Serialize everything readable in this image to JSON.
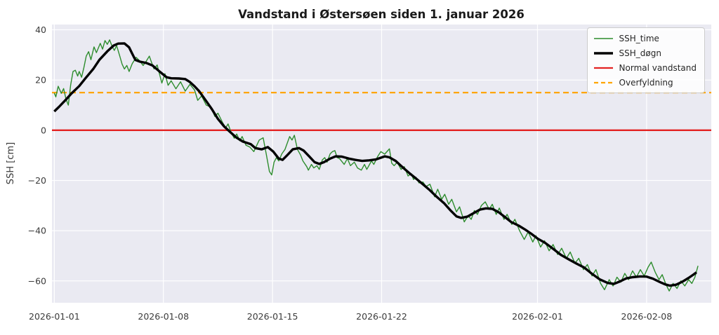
{
  "chart_data": {
    "type": "line",
    "title": "Vandstand i Østersøen siden 1. januar 2026",
    "ylabel": "SSH [cm]",
    "xlabel": "",
    "x_unit": "days since 2026-01-01",
    "xlim": [
      -0.15,
      42.15
    ],
    "ylim": [
      -68.7,
      42.1
    ],
    "grid": true,
    "legend_position": "upper right",
    "background_color": "#eaeaf2",
    "grid_color": "#ffffff",
    "x_ticks": [
      {
        "value": 0,
        "label": "2026-01-01"
      },
      {
        "value": 7,
        "label": "2026-01-08"
      },
      {
        "value": 14,
        "label": "2026-01-15"
      },
      {
        "value": 21,
        "label": "2026-01-22"
      },
      {
        "value": 31,
        "label": "2026-02-01"
      },
      {
        "value": 38,
        "label": "2026-02-08"
      }
    ],
    "y_ticks": [
      {
        "value": 40,
        "label": "40"
      },
      {
        "value": 20,
        "label": "20"
      },
      {
        "value": 0,
        "label": "0"
      },
      {
        "value": -20,
        "label": "−20"
      },
      {
        "value": -40,
        "label": "−40"
      },
      {
        "value": -60,
        "label": "−60"
      }
    ],
    "series": [
      {
        "id": "ssh-time",
        "name": "SSH_time",
        "color": "#2d8c2d",
        "width": 1.4,
        "points": [
          [
            0,
            14.8
          ],
          [
            0.1,
            13.3
          ],
          [
            0.25,
            17.5
          ],
          [
            0.45,
            14.7
          ],
          [
            0.6,
            16.6
          ],
          [
            0.75,
            12.4
          ],
          [
            0.9,
            10.0
          ],
          [
            1.05,
            18.0
          ],
          [
            1.2,
            23.4
          ],
          [
            1.35,
            23.9
          ],
          [
            1.5,
            21.6
          ],
          [
            1.6,
            23.4
          ],
          [
            1.75,
            21.1
          ],
          [
            1.9,
            25.0
          ],
          [
            2.05,
            29.5
          ],
          [
            2.2,
            31.3
          ],
          [
            2.35,
            28.1
          ],
          [
            2.55,
            33.2
          ],
          [
            2.7,
            30.9
          ],
          [
            2.95,
            34.6
          ],
          [
            3.1,
            32.3
          ],
          [
            3.25,
            35.7
          ],
          [
            3.4,
            34.2
          ],
          [
            3.55,
            36.0
          ],
          [
            3.7,
            33.5
          ],
          [
            3.85,
            31.8
          ],
          [
            4.0,
            33.7
          ],
          [
            4.2,
            29.5
          ],
          [
            4.35,
            26.3
          ],
          [
            4.5,
            24.4
          ],
          [
            4.65,
            25.8
          ],
          [
            4.8,
            23.4
          ],
          [
            5.0,
            26.5
          ],
          [
            5.25,
            29.0
          ],
          [
            5.45,
            27.8
          ],
          [
            5.7,
            25.8
          ],
          [
            5.9,
            27.5
          ],
          [
            6.1,
            29.5
          ],
          [
            6.25,
            26.8
          ],
          [
            6.4,
            24.4
          ],
          [
            6.6,
            26.0
          ],
          [
            6.9,
            18.8
          ],
          [
            7.1,
            22.5
          ],
          [
            7.3,
            17.9
          ],
          [
            7.5,
            19.7
          ],
          [
            7.8,
            16.5
          ],
          [
            8.1,
            19.3
          ],
          [
            8.4,
            15.6
          ],
          [
            8.7,
            18.3
          ],
          [
            9.0,
            16.0
          ],
          [
            9.2,
            11.9
          ],
          [
            9.45,
            13.7
          ],
          [
            9.75,
            10.0
          ],
          [
            10.05,
            9.2
          ],
          [
            10.3,
            5.5
          ],
          [
            10.5,
            6.8
          ],
          [
            10.8,
            3.0
          ],
          [
            11.0,
            1.0
          ],
          [
            11.15,
            2.5
          ],
          [
            11.35,
            -1.0
          ],
          [
            11.55,
            -3.2
          ],
          [
            11.7,
            -1.5
          ],
          [
            11.9,
            -4.2
          ],
          [
            12.05,
            -2.5
          ],
          [
            12.3,
            -6.0
          ],
          [
            12.55,
            -6.7
          ],
          [
            12.8,
            -8.5
          ],
          [
            13.15,
            -3.9
          ],
          [
            13.4,
            -3.0
          ],
          [
            13.6,
            -9.5
          ],
          [
            13.8,
            -16.4
          ],
          [
            13.95,
            -17.8
          ],
          [
            14.1,
            -12.7
          ],
          [
            14.25,
            -10.9
          ],
          [
            14.4,
            -12.2
          ],
          [
            14.6,
            -9.4
          ],
          [
            14.8,
            -7.6
          ],
          [
            15.1,
            -2.5
          ],
          [
            15.25,
            -3.9
          ],
          [
            15.4,
            -2.0
          ],
          [
            15.6,
            -7.6
          ],
          [
            15.8,
            -9.9
          ],
          [
            15.95,
            -12.2
          ],
          [
            16.2,
            -14.5
          ],
          [
            16.3,
            -15.9
          ],
          [
            16.5,
            -13.6
          ],
          [
            16.65,
            -15.0
          ],
          [
            16.85,
            -14.1
          ],
          [
            17.0,
            -15.6
          ],
          [
            17.2,
            -11.8
          ],
          [
            17.35,
            -10.9
          ],
          [
            17.5,
            -12.7
          ],
          [
            17.7,
            -9.4
          ],
          [
            17.85,
            -8.5
          ],
          [
            18.0,
            -8.1
          ],
          [
            18.15,
            -10.9
          ],
          [
            18.3,
            -11.3
          ],
          [
            18.6,
            -13.6
          ],
          [
            18.8,
            -11.3
          ],
          [
            19.0,
            -14.1
          ],
          [
            19.25,
            -12.7
          ],
          [
            19.45,
            -15.0
          ],
          [
            19.7,
            -15.9
          ],
          [
            19.9,
            -13.6
          ],
          [
            20.05,
            -15.6
          ],
          [
            20.35,
            -12.2
          ],
          [
            20.5,
            -13.6
          ],
          [
            20.75,
            -10.4
          ],
          [
            20.95,
            -8.5
          ],
          [
            21.2,
            -9.5
          ],
          [
            21.5,
            -7.4
          ],
          [
            21.65,
            -13.1
          ],
          [
            21.8,
            -14.1
          ],
          [
            22.0,
            -12.7
          ],
          [
            22.25,
            -15.6
          ],
          [
            22.45,
            -14.5
          ],
          [
            22.7,
            -18.2
          ],
          [
            22.9,
            -17.3
          ],
          [
            23.05,
            -19.6
          ],
          [
            23.2,
            -18.7
          ],
          [
            23.4,
            -21.0
          ],
          [
            23.65,
            -20.6
          ],
          [
            23.85,
            -22.4
          ],
          [
            24.1,
            -21.5
          ],
          [
            24.4,
            -26.5
          ],
          [
            24.6,
            -23.5
          ],
          [
            24.85,
            -27.5
          ],
          [
            25.05,
            -25.5
          ],
          [
            25.3,
            -29.5
          ],
          [
            25.5,
            -27.5
          ],
          [
            25.8,
            -32.5
          ],
          [
            26.0,
            -30.5
          ],
          [
            26.3,
            -36.5
          ],
          [
            26.55,
            -34.0
          ],
          [
            26.75,
            -35.5
          ],
          [
            26.95,
            -32.0
          ],
          [
            27.15,
            -33.5
          ],
          [
            27.4,
            -30.0
          ],
          [
            27.65,
            -28.5
          ],
          [
            27.9,
            -31.5
          ],
          [
            28.1,
            -29.5
          ],
          [
            28.35,
            -33.5
          ],
          [
            28.55,
            -31.0
          ],
          [
            28.85,
            -35.5
          ],
          [
            29.05,
            -33.5
          ],
          [
            29.35,
            -37.5
          ],
          [
            29.55,
            -35.5
          ],
          [
            29.85,
            -40.0
          ],
          [
            30.15,
            -43.5
          ],
          [
            30.4,
            -40.5
          ],
          [
            30.7,
            -44.5
          ],
          [
            30.9,
            -42.0
          ],
          [
            31.2,
            -46.5
          ],
          [
            31.45,
            -44.0
          ],
          [
            31.75,
            -48.0
          ],
          [
            32.0,
            -45.5
          ],
          [
            32.3,
            -49.5
          ],
          [
            32.55,
            -47.0
          ],
          [
            32.85,
            -51.0
          ],
          [
            33.1,
            -48.5
          ],
          [
            33.4,
            -53.0
          ],
          [
            33.65,
            -51.0
          ],
          [
            33.95,
            -55.5
          ],
          [
            34.2,
            -53.5
          ],
          [
            34.5,
            -58.0
          ],
          [
            34.75,
            -55.5
          ],
          [
            35.05,
            -61.0
          ],
          [
            35.3,
            -63.5
          ],
          [
            35.6,
            -59.5
          ],
          [
            35.85,
            -62.0
          ],
          [
            36.1,
            -58.5
          ],
          [
            36.35,
            -60.5
          ],
          [
            36.6,
            -57.0
          ],
          [
            36.85,
            -59.5
          ],
          [
            37.1,
            -56.0
          ],
          [
            37.35,
            -58.5
          ],
          [
            37.6,
            -55.5
          ],
          [
            37.85,
            -58.0
          ],
          [
            38.1,
            -54.5
          ],
          [
            38.3,
            -52.5
          ],
          [
            38.55,
            -56.5
          ],
          [
            38.8,
            -59.5
          ],
          [
            39.0,
            -57.5
          ],
          [
            39.25,
            -61.5
          ],
          [
            39.45,
            -64.0
          ],
          [
            39.7,
            -61.0
          ],
          [
            39.95,
            -63.0
          ],
          [
            40.2,
            -60.0
          ],
          [
            40.45,
            -62.0
          ],
          [
            40.7,
            -59.5
          ],
          [
            40.9,
            -61.0
          ],
          [
            41.1,
            -58.5
          ],
          [
            41.3,
            -54.0
          ]
        ]
      },
      {
        "id": "ssh-dogn",
        "name": "SSH_døgn",
        "color": "#000000",
        "width": 3.4,
        "points": [
          [
            0,
            7.5
          ],
          [
            0.3,
            9.3
          ],
          [
            0.7,
            11.9
          ],
          [
            1.1,
            14.6
          ],
          [
            1.6,
            17.6
          ],
          [
            2.0,
            20.7
          ],
          [
            2.5,
            24.4
          ],
          [
            2.9,
            28.1
          ],
          [
            3.4,
            31.4
          ],
          [
            3.8,
            33.7
          ],
          [
            4.1,
            34.5
          ],
          [
            4.5,
            34.6
          ],
          [
            4.8,
            33.0
          ],
          [
            5.0,
            30.5
          ],
          [
            5.2,
            28.0
          ],
          [
            5.5,
            27.3
          ],
          [
            5.9,
            26.8
          ],
          [
            6.3,
            25.8
          ],
          [
            6.75,
            23.4
          ],
          [
            7.2,
            21.1
          ],
          [
            7.5,
            20.7
          ],
          [
            8.0,
            20.6
          ],
          [
            8.4,
            20.4
          ],
          [
            8.7,
            19.2
          ],
          [
            9.0,
            17.5
          ],
          [
            9.3,
            15.5
          ],
          [
            9.7,
            12.0
          ],
          [
            10.1,
            8.5
          ],
          [
            10.5,
            4.5
          ],
          [
            10.9,
            1.5
          ],
          [
            11.3,
            -0.8
          ],
          [
            11.7,
            -3.0
          ],
          [
            12.1,
            -4.5
          ],
          [
            12.6,
            -5.5
          ],
          [
            12.9,
            -7.1
          ],
          [
            13.3,
            -7.6
          ],
          [
            13.7,
            -6.7
          ],
          [
            14.05,
            -8.5
          ],
          [
            14.4,
            -11.3
          ],
          [
            14.65,
            -11.8
          ],
          [
            14.95,
            -9.9
          ],
          [
            15.3,
            -7.6
          ],
          [
            15.7,
            -7.1
          ],
          [
            16.0,
            -8.1
          ],
          [
            16.35,
            -10.4
          ],
          [
            16.7,
            -12.7
          ],
          [
            17.0,
            -13.4
          ],
          [
            17.3,
            -12.7
          ],
          [
            17.7,
            -11.3
          ],
          [
            18.05,
            -10.4
          ],
          [
            18.45,
            -10.5
          ],
          [
            18.9,
            -11.3
          ],
          [
            19.3,
            -11.8
          ],
          [
            19.75,
            -12.2
          ],
          [
            20.2,
            -12.0
          ],
          [
            20.65,
            -11.6
          ],
          [
            21.2,
            -10.4
          ],
          [
            21.5,
            -10.8
          ],
          [
            21.9,
            -12.2
          ],
          [
            22.3,
            -14.5
          ],
          [
            22.75,
            -16.9
          ],
          [
            23.2,
            -19.2
          ],
          [
            23.65,
            -21.5
          ],
          [
            24.1,
            -23.9
          ],
          [
            24.5,
            -26.3
          ],
          [
            25.0,
            -29.0
          ],
          [
            25.4,
            -31.8
          ],
          [
            25.8,
            -34.3
          ],
          [
            26.1,
            -34.9
          ],
          [
            26.5,
            -34.4
          ],
          [
            26.9,
            -33.0
          ],
          [
            27.3,
            -31.6
          ],
          [
            27.7,
            -31.1
          ],
          [
            28.1,
            -31.3
          ],
          [
            28.5,
            -32.6
          ],
          [
            28.9,
            -34.5
          ],
          [
            29.3,
            -36.5
          ],
          [
            29.8,
            -38.0
          ],
          [
            30.2,
            -39.5
          ],
          [
            30.6,
            -41.2
          ],
          [
            31.0,
            -43.1
          ],
          [
            31.5,
            -44.9
          ],
          [
            32.0,
            -47.2
          ],
          [
            32.5,
            -49.6
          ],
          [
            33.0,
            -51.4
          ],
          [
            33.5,
            -53.1
          ],
          [
            34.0,
            -54.7
          ],
          [
            34.5,
            -57.2
          ],
          [
            35.0,
            -59.4
          ],
          [
            35.5,
            -60.8
          ],
          [
            35.9,
            -61.2
          ],
          [
            36.3,
            -60.2
          ],
          [
            36.7,
            -59.0
          ],
          [
            37.1,
            -58.5
          ],
          [
            37.6,
            -58.2
          ],
          [
            38.0,
            -58.3
          ],
          [
            38.4,
            -59.1
          ],
          [
            38.8,
            -60.3
          ],
          [
            39.2,
            -61.4
          ],
          [
            39.5,
            -61.9
          ],
          [
            39.9,
            -61.5
          ],
          [
            40.3,
            -60.3
          ],
          [
            40.7,
            -58.8
          ],
          [
            41.0,
            -57.5
          ],
          [
            41.2,
            -56.6
          ]
        ]
      },
      {
        "id": "normal-vandstand",
        "name": "Normal vandstand",
        "color": "#e32222",
        "width": 2.3,
        "constant": 0
      },
      {
        "id": "overfyldning",
        "name": "Overfyldning",
        "color": "#ffa500",
        "width": 2.3,
        "dash": "8,5",
        "constant": 15
      }
    ]
  }
}
